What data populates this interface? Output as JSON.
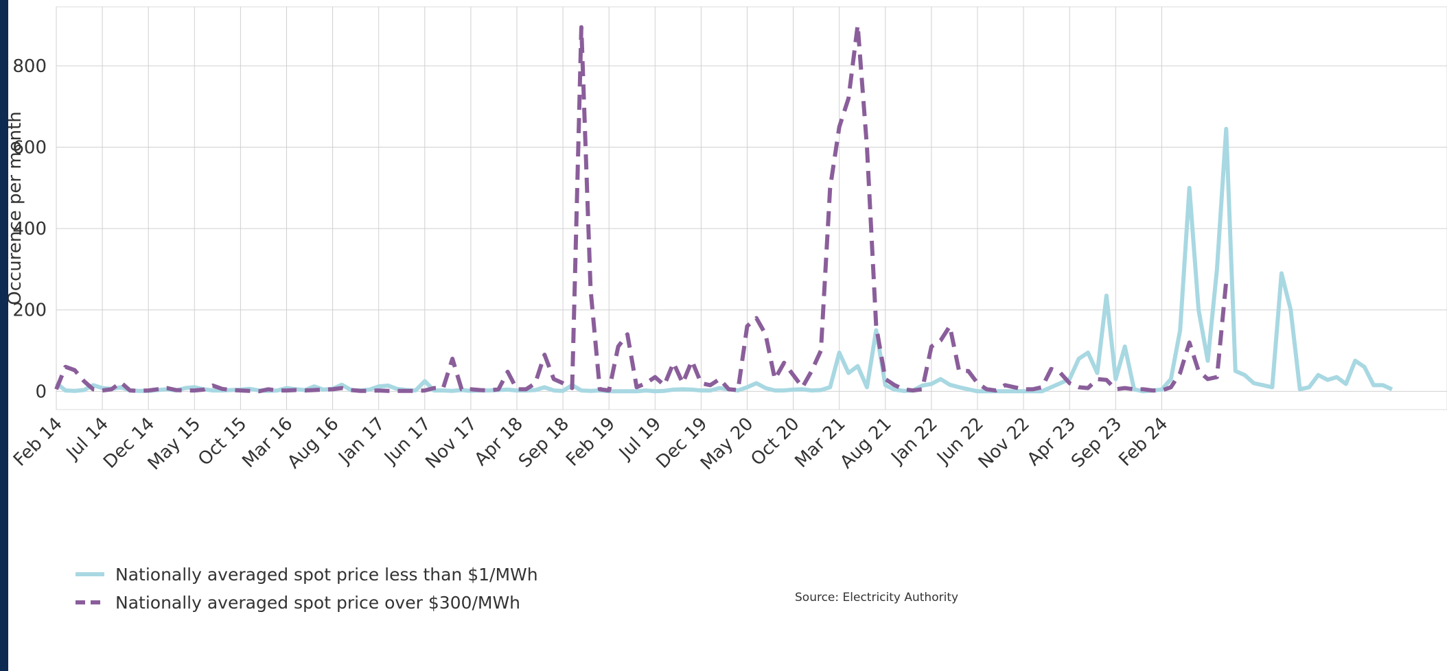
{
  "chart_data": {
    "type": "line",
    "ylabel": "Occurence per month",
    "xlabel": "",
    "ylim": [
      -45,
      945
    ],
    "yticks": [
      0,
      200,
      400,
      600,
      800
    ],
    "grid": true,
    "legend_position": "bottom-left",
    "source": "Source: Electricity Authority",
    "x_tick_labels": [
      "Feb 14",
      "Jul 14",
      "Dec 14",
      "May 15",
      "Oct 15",
      "Mar 16",
      "Aug 16",
      "Jan 17",
      "Jun 17",
      "Nov 17",
      "Apr 18",
      "Sep 18",
      "Feb 19",
      "Jul 19",
      "Dec 19",
      "May 20",
      "Oct 20",
      "Mar 21",
      "Aug 21",
      "Jan 22",
      "Jun 22",
      "Nov 22",
      "Apr 23",
      "Sep 23",
      "Feb 24"
    ],
    "series": [
      {
        "name": "Nationally averaged spot price less than $1/MWh",
        "color": "#a8d8e2",
        "style": "solid",
        "values": [
          20,
          2,
          1,
          3,
          15,
          8,
          6,
          10,
          2,
          1,
          1,
          3,
          5,
          2,
          8,
          10,
          5,
          2,
          2,
          3,
          4,
          6,
          2,
          1,
          2,
          8,
          5,
          3,
          12,
          4,
          6,
          16,
          3,
          2,
          4,
          12,
          14,
          6,
          3,
          2,
          25,
          2,
          2,
          1,
          3,
          1,
          2,
          2,
          3,
          4,
          2,
          2,
          3,
          10,
          2,
          1,
          15,
          2,
          1,
          2,
          0,
          0,
          0,
          0,
          2,
          0,
          1,
          4,
          5,
          4,
          2,
          2,
          8,
          5,
          2,
          10,
          20,
          8,
          2,
          2,
          4,
          5,
          2,
          3,
          10,
          95,
          45,
          62,
          10,
          150,
          15,
          4,
          1,
          2,
          14,
          18,
          30,
          16,
          10,
          5,
          0,
          0,
          0,
          0,
          0,
          0,
          0,
          0,
          10,
          20,
          30,
          80,
          95,
          45,
          235,
          30,
          110,
          5,
          0,
          2,
          4,
          30,
          150,
          500,
          200,
          75,
          300,
          645,
          50,
          40,
          20,
          15,
          10,
          290,
          200,
          5,
          10,
          40,
          28,
          35,
          18,
          75,
          60,
          15,
          15,
          5
        ]
      },
      {
        "name": "Nationally averaged spot price over $300/MWh",
        "color": "#8a5e9a",
        "style": "dashed",
        "values": [
          5,
          60,
          52,
          25,
          5,
          2,
          5,
          22,
          2,
          1,
          2,
          5,
          8,
          3,
          2,
          2,
          4,
          14,
          6,
          3,
          2,
          1,
          0,
          5,
          2,
          2,
          3,
          2,
          3,
          4,
          5,
          8,
          3,
          1,
          1,
          2,
          1,
          1,
          1,
          1,
          2,
          8,
          8,
          80,
          5,
          5,
          3,
          2,
          5,
          48,
          5,
          5,
          20,
          90,
          30,
          20,
          8,
          895,
          250,
          5,
          2,
          110,
          140,
          10,
          20,
          35,
          15,
          70,
          20,
          75,
          20,
          15,
          30,
          5,
          3,
          160,
          180,
          140,
          30,
          70,
          40,
          10,
          50,
          100,
          500,
          650,
          720,
          900,
          600,
          160,
          30,
          15,
          5,
          2,
          5,
          110,
          125,
          160,
          50,
          50,
          20,
          5,
          2,
          15,
          10,
          5,
          5,
          10,
          55,
          45,
          20,
          10,
          8,
          30,
          28,
          5,
          8,
          5,
          5,
          2,
          2,
          10,
          45,
          120,
          50,
          30,
          35,
          270
        ]
      }
    ]
  }
}
